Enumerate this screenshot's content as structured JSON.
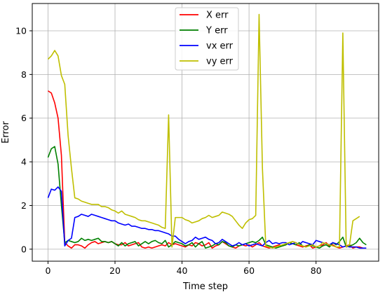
{
  "chart_data": {
    "type": "line",
    "xlabel": "Time step",
    "ylabel": "Error",
    "xlim": [
      -4.7,
      98.7
    ],
    "ylim": [
      -0.55,
      11.25
    ],
    "xticks": [
      0,
      20,
      40,
      60,
      80
    ],
    "yticks": [
      0,
      2,
      4,
      6,
      8,
      10
    ],
    "grid": true,
    "legend_position": "top-center",
    "series": [
      {
        "name": "X err",
        "color": "#ff0000",
        "values": [
          7.25,
          7.15,
          6.7,
          6.0,
          4.3,
          0.3,
          0.15,
          0.05,
          0.2,
          0.2,
          0.15,
          0.05,
          0.2,
          0.3,
          0.35,
          0.25,
          0.3,
          0.35,
          0.3,
          0.35,
          0.25,
          0.2,
          0.2,
          0.3,
          0.15,
          0.2,
          0.25,
          0.3,
          0.1,
          0.05,
          0.1,
          0.05,
          0.1,
          0.15,
          0.2,
          0.15,
          0.3,
          0.2,
          0.25,
          0.2,
          0.15,
          0.1,
          0.2,
          0.15,
          0.3,
          0.25,
          0.15,
          0.2,
          0.3,
          0.05,
          0.15,
          0.2,
          0.35,
          0.25,
          0.15,
          0.1,
          0.05,
          0.15,
          0.2,
          0.15,
          0.2,
          0.1,
          0.2,
          0.3,
          0.15,
          0.1,
          0.05,
          0.1,
          0.15,
          0.2,
          0.15,
          0.2,
          0.3,
          0.25,
          0.2,
          0.15,
          0.1,
          0.15,
          0.2,
          0.05,
          0.1,
          0.15,
          0.2,
          0.3,
          0.15,
          0.2,
          0.1,
          0.05,
          0.1,
          0.15,
          0.2,
          0.05,
          0.1,
          0.1,
          0.05
        ]
      },
      {
        "name": "Y err",
        "color": "#008000",
        "values": [
          4.2,
          4.6,
          4.7,
          3.9,
          2.0,
          0.3,
          0.4,
          0.35,
          0.3,
          0.35,
          0.5,
          0.4,
          0.45,
          0.4,
          0.45,
          0.5,
          0.35,
          0.35,
          0.3,
          0.35,
          0.25,
          0.15,
          0.3,
          0.15,
          0.25,
          0.3,
          0.35,
          0.15,
          0.25,
          0.35,
          0.25,
          0.35,
          0.4,
          0.3,
          0.25,
          0.4,
          0.1,
          0.2,
          0.35,
          0.3,
          0.25,
          0.15,
          0.2,
          0.3,
          0.1,
          0.25,
          0.35,
          0.05,
          0.1,
          0.15,
          0.25,
          0.2,
          0.35,
          0.3,
          0.15,
          0.1,
          0.2,
          0.15,
          0.2,
          0.25,
          0.3,
          0.35,
          0.3,
          0.4,
          0.55,
          0.2,
          0.15,
          0.1,
          0.05,
          0.1,
          0.15,
          0.2,
          0.3,
          0.25,
          0.2,
          0.3,
          0.15,
          0.1,
          0.2,
          0.15,
          0.1,
          0.05,
          0.15,
          0.2,
          0.1,
          0.3,
          0.2,
          0.35,
          0.55,
          0.1,
          0.15,
          0.2,
          0.3,
          0.5,
          0.3,
          0.2
        ]
      },
      {
        "name": "vx err",
        "color": "#0000ff",
        "values": [
          2.35,
          2.75,
          2.7,
          2.85,
          2.65,
          0.15,
          0.4,
          0.5,
          1.45,
          1.5,
          1.6,
          1.55,
          1.5,
          1.6,
          1.55,
          1.5,
          1.45,
          1.4,
          1.35,
          1.3,
          1.3,
          1.2,
          1.15,
          1.1,
          1.15,
          1.05,
          1.05,
          1.0,
          0.95,
          0.95,
          0.9,
          0.9,
          0.85,
          0.85,
          0.8,
          0.75,
          0.7,
          0.6,
          0.6,
          0.45,
          0.35,
          0.25,
          0.35,
          0.4,
          0.55,
          0.45,
          0.5,
          0.55,
          0.45,
          0.4,
          0.25,
          0.3,
          0.45,
          0.35,
          0.25,
          0.15,
          0.2,
          0.3,
          0.2,
          0.25,
          0.15,
          0.2,
          0.25,
          0.2,
          0.15,
          0.3,
          0.4,
          0.25,
          0.3,
          0.25,
          0.3,
          0.3,
          0.2,
          0.25,
          0.3,
          0.2,
          0.35,
          0.3,
          0.25,
          0.2,
          0.4,
          0.35,
          0.3,
          0.25,
          0.2,
          0.3,
          0.25,
          0.2,
          0.1,
          0.15,
          0.1,
          0.1,
          0.1,
          0.05,
          0.05,
          0.05
        ]
      },
      {
        "name": "vy err",
        "color": "#bfbf00",
        "values": [
          8.7,
          8.85,
          9.1,
          8.85,
          7.95,
          7.55,
          5.2,
          3.7,
          2.35,
          2.3,
          2.2,
          2.15,
          2.1,
          2.05,
          2.05,
          2.05,
          1.95,
          1.95,
          1.9,
          1.8,
          1.75,
          1.65,
          1.75,
          1.6,
          1.55,
          1.5,
          1.45,
          1.35,
          1.3,
          1.3,
          1.25,
          1.2,
          1.15,
          1.1,
          1.0,
          0.95,
          6.15,
          0.1,
          1.45,
          1.45,
          1.45,
          1.35,
          1.3,
          1.2,
          1.25,
          1.3,
          1.4,
          1.45,
          1.55,
          1.45,
          1.5,
          1.55,
          1.7,
          1.65,
          1.6,
          1.5,
          1.3,
          1.1,
          0.95,
          1.2,
          1.35,
          1.4,
          1.55,
          10.75,
          3.7,
          0.15,
          0.1,
          0.05,
          0.1,
          0.15,
          0.2,
          0.25,
          0.3,
          0.35,
          0.3,
          0.2,
          0.15,
          0.1,
          0.15,
          0.2,
          0.1,
          0.15,
          0.3,
          0.25,
          0.2,
          0.15,
          0.1,
          0.1,
          9.9,
          0.1,
          0.2,
          1.3,
          1.4,
          1.5
        ]
      }
    ]
  }
}
